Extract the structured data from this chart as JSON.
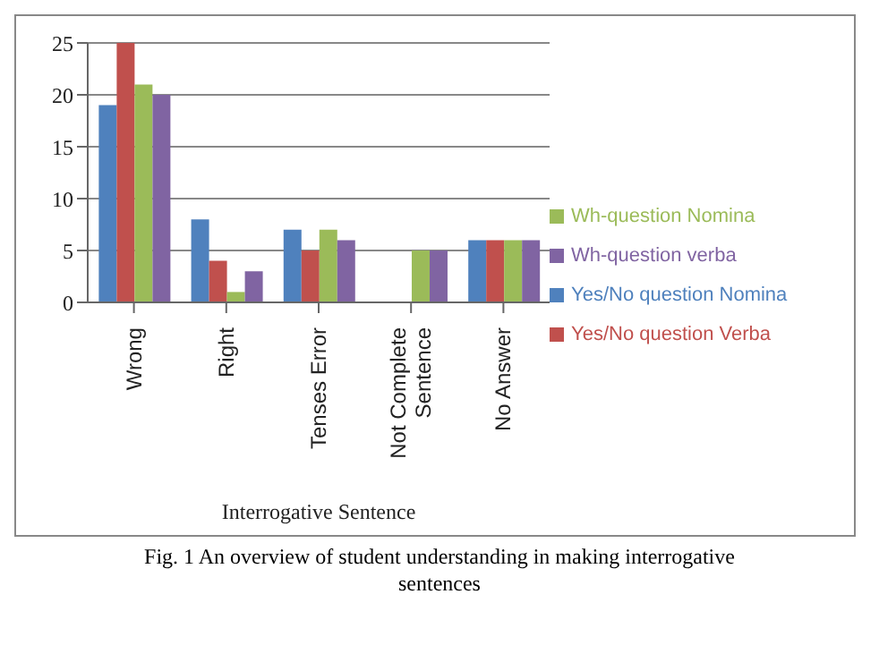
{
  "chart_data": {
    "type": "bar",
    "xlabel": "Interrogative Sentence",
    "categories": [
      "Wrong",
      "Right",
      "Tenses Error",
      "Not Complete Sentence",
      "No Answer"
    ],
    "series": [
      {
        "name": "Yes/No question Nomina",
        "color": "#4f81bd",
        "values": [
          19,
          8,
          7,
          0,
          6
        ]
      },
      {
        "name": "Yes/No question Verba",
        "color": "#c0504d",
        "values": [
          25,
          4,
          5,
          0,
          6
        ]
      },
      {
        "name": "Wh-question Nomina",
        "color": "#9bbb59",
        "values": [
          21,
          1,
          7,
          5,
          6
        ]
      },
      {
        "name": "Wh-question verba",
        "color": "#8064a2",
        "values": [
          20,
          3,
          6,
          5,
          6
        ]
      }
    ],
    "ylim": [
      0,
      25
    ],
    "yticks": [
      0,
      5,
      10,
      15,
      20,
      25
    ],
    "grid": "y",
    "legend": "right",
    "annotations": [
      "Fig. 1 An overview of student understanding in making interrogative sentences"
    ]
  }
}
